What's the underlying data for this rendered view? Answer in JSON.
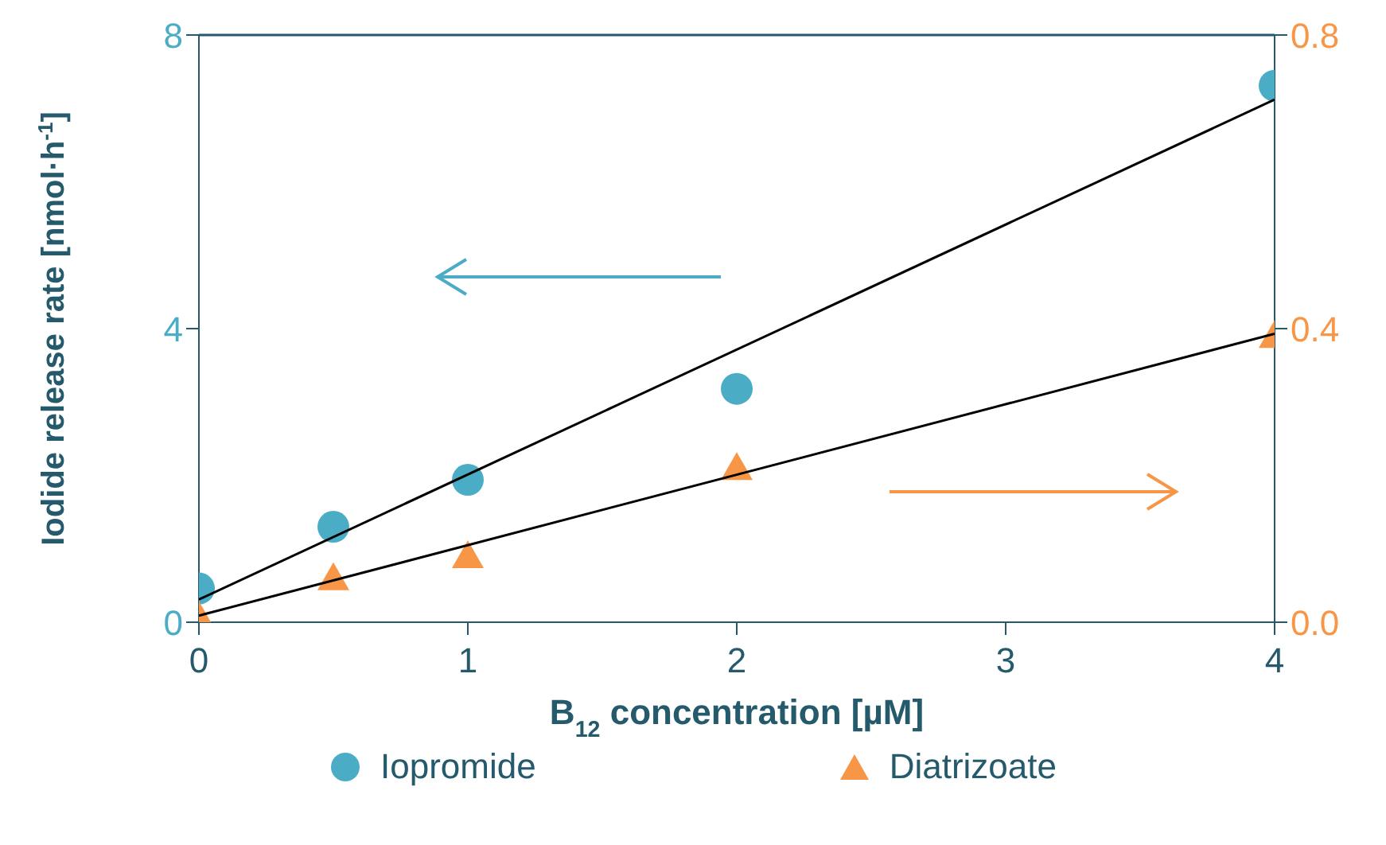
{
  "chart_data": {
    "type": "scatter",
    "xlabel": "B$_{12}$ concentration [µM]",
    "ylabel": "Iodide release rate [nmol·h$^{-1}$]",
    "xlim": [
      0,
      4
    ],
    "xticks": [
      0,
      1,
      2,
      3,
      4
    ],
    "ylim": [
      0,
      8
    ],
    "yticks": [
      0,
      4,
      8
    ],
    "y2lim": [
      0,
      0.8
    ],
    "y2ticks": [
      {
        "value": 0,
        "label": "0.0"
      },
      0.4,
      0.8
    ],
    "legend": "bottom",
    "series": [
      {
        "name": "Iopromide",
        "marker": "circle",
        "color": "#4bacc6",
        "axis": "y",
        "x": [
          0,
          0.5,
          1,
          2,
          4
        ],
        "values": [
          0.46,
          1.3,
          1.94,
          3.18,
          7.31
        ]
      },
      {
        "name": "Diatrizoate",
        "marker": "triangle",
        "color": "#f79646",
        "axis": "y2",
        "x": [
          0,
          0.5,
          1,
          2,
          4
        ],
        "values": [
          0.007,
          0.06,
          0.09,
          0.21,
          0.39
        ]
      },
      {
        "type": "line",
        "marker": "none",
        "color": "#000000",
        "axis": "y",
        "x": [
          0,
          4
        ],
        "values": [
          0.31,
          7.12
        ]
      },
      {
        "type": "line",
        "marker": "none",
        "color": "#000000",
        "axis": "y2",
        "x": [
          0,
          4
        ],
        "values": [
          0.009,
          0.393
        ]
      }
    ]
  }
}
